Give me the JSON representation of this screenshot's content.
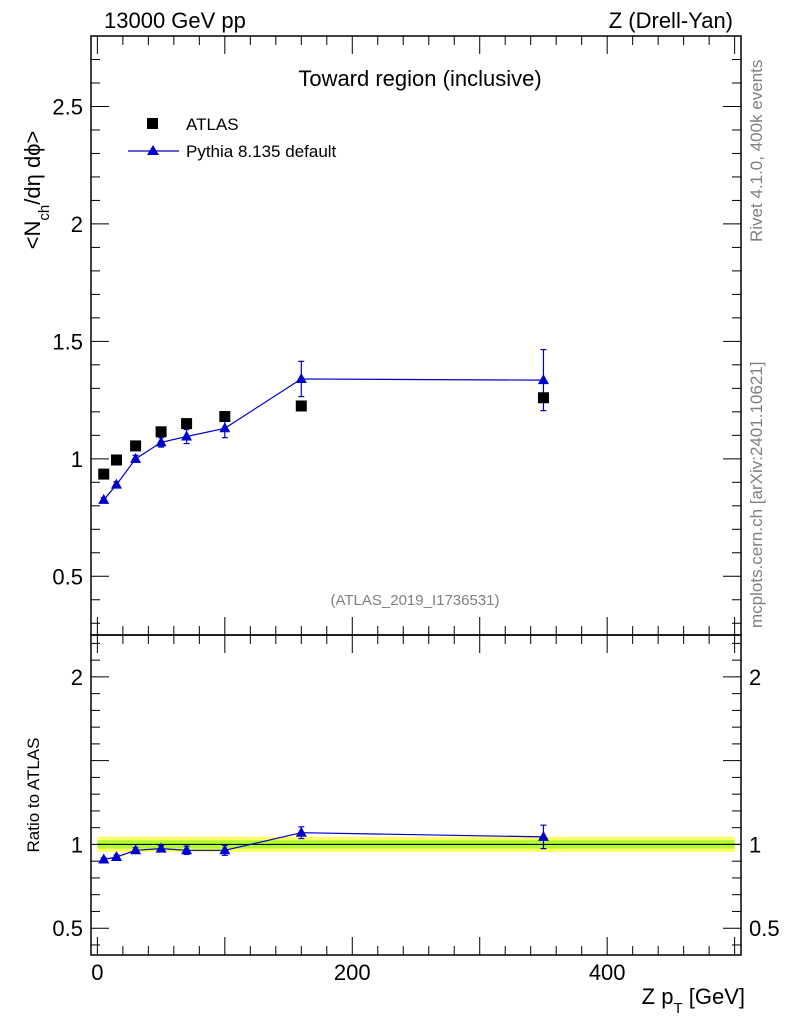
{
  "header": {
    "left": "13000 GeV pp",
    "right": "Z (Drell-Yan)"
  },
  "side_text": {
    "rivet": "Rivet 4.1.0,  400k events",
    "source": "mcplots.cern.ch [arXiv:2401.10621]"
  },
  "chart_data": [
    {
      "type": "scatter",
      "title": "Toward region (inclusive)",
      "watermark": "(ATLAS_2019_I1736531)",
      "ylabel": "<N_ch/dη dϕ>",
      "ylabel_parts": {
        "base": "<N",
        "sub": "ch",
        "rest": "/dη dϕ>"
      },
      "xlim": [
        -5,
        505
      ],
      "ylim": [
        0.25,
        2.8
      ],
      "yticks": [
        0.5,
        1,
        1.5,
        2,
        2.5
      ],
      "ytick_labels": [
        "0.5",
        "1",
        "1.5",
        "2",
        "2.5"
      ],
      "legend_position": "top-left",
      "series": [
        {
          "name": "ATLAS",
          "marker": "square",
          "color": "#000000",
          "x": [
            5,
            15,
            30,
            50,
            70,
            100,
            160,
            350
          ],
          "y": [
            0.935,
            0.995,
            1.055,
            1.115,
            1.15,
            1.18,
            1.225,
            1.26
          ]
        },
        {
          "name": "Pythia 8.135 default",
          "marker": "triangle",
          "color": "#0000cc",
          "x": [
            5,
            15,
            30,
            50,
            70,
            100,
            160,
            350
          ],
          "y": [
            0.825,
            0.89,
            1.0,
            1.07,
            1.095,
            1.13,
            1.34,
            1.335
          ],
          "yerr": [
            0.01,
            0.012,
            0.015,
            0.02,
            0.03,
            0.04,
            0.075,
            0.13
          ]
        }
      ]
    },
    {
      "type": "scatter",
      "ylabel": "Ratio to ATLAS",
      "xlabel": "Z p_T [GeV]",
      "xlabel_parts": {
        "base": "Z p",
        "sub": "T",
        "rest": " [GeV]"
      },
      "xlim": [
        -5,
        505
      ],
      "ylim": [
        0.34,
        2.25
      ],
      "yticks": [
        0.5,
        1,
        2
      ],
      "ytick_labels": [
        "0.5",
        "1",
        "2"
      ],
      "xticks": [
        0,
        200,
        400
      ],
      "xtick_labels": [
        "0",
        "200",
        "400"
      ],
      "band": {
        "inner": [
          0.975,
          1.025
        ],
        "outer": [
          0.955,
          1.045
        ],
        "inner_color": "#adff2f",
        "outer_color": "#ffff66"
      },
      "series": [
        {
          "name": "Pythia 8.135 default",
          "marker": "triangle",
          "color": "#0000cc",
          "x": [
            5,
            15,
            30,
            50,
            70,
            100,
            160,
            350
          ],
          "y": [
            0.91,
            0.925,
            0.965,
            0.975,
            0.965,
            0.965,
            1.07,
            1.045
          ],
          "yerr": [
            0.01,
            0.012,
            0.015,
            0.018,
            0.025,
            0.03,
            0.035,
            0.07
          ]
        }
      ]
    }
  ]
}
